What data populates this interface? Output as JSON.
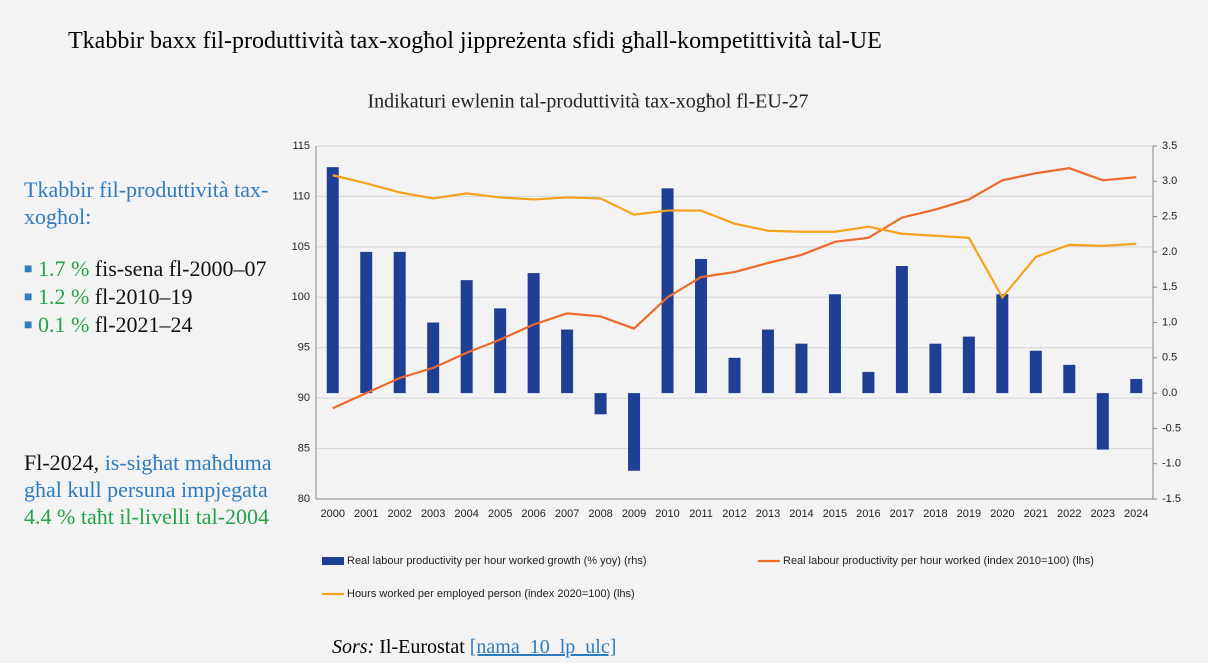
{
  "slide": {
    "title": "Tkabbir baxx fil-produttività tax-xogħol jippreżenta sfidi għall-kompetittività tal-UE",
    "side": {
      "heading": "Tkabbir fil-produttività tax-xogħol:",
      "bullets": [
        {
          "value": "1.7 %",
          "text": "fis-sena fl-2000–07"
        },
        {
          "value": "1.2 %",
          "text": "fl-2010–19"
        },
        {
          "value": "0.1 %",
          "text": "fl-2021–24"
        }
      ],
      "note": {
        "lead": "Fl-2024,",
        "blue": "is-sigħat maħduma għal kull persuna impjegata",
        "green": "4.4 % taħt il-livelli tal-2004"
      }
    },
    "source": {
      "label": "Sors:",
      "text": "Il-Eurostat",
      "link": "[nama_10_lp_ulc]"
    }
  },
  "chart_data": {
    "type": "bar",
    "title": "Indikaturi ewlenin tal-produttività tax-xogħol fl-EU-27",
    "categories": [
      "2000",
      "2001",
      "2002",
      "2003",
      "2004",
      "2005",
      "2006",
      "2007",
      "2008",
      "2009",
      "2010",
      "2011",
      "2012",
      "2013",
      "2014",
      "2015",
      "2016",
      "2017",
      "2018",
      "2019",
      "2020",
      "2021",
      "2022",
      "2023",
      "2024"
    ],
    "series": [
      {
        "name": "Real labour productivity per hour worked growth (% yoy) (rhs)",
        "type": "bar",
        "axis": "y2",
        "color": "#1f3f94",
        "values": [
          3.2,
          2.0,
          2.0,
          1.0,
          1.6,
          1.2,
          1.7,
          0.9,
          -0.3,
          -1.1,
          2.9,
          1.9,
          0.5,
          0.9,
          0.7,
          1.4,
          0.3,
          1.8,
          0.7,
          0.8,
          1.4,
          0.6,
          0.4,
          -0.8,
          0.2
        ]
      },
      {
        "name": "Real labour productivity per hour worked (index 2010=100) (lhs)",
        "type": "line",
        "color": "#ed6a2b",
        "values": [
          89,
          90.5,
          92,
          93,
          94.5,
          95.8,
          97.3,
          98.4,
          98.1,
          96.9,
          100,
          102,
          102.5,
          103.4,
          104.2,
          105.5,
          105.9,
          107.9,
          108.7,
          109.7,
          111.6,
          112.3,
          112.8,
          111.6,
          111.9
        ]
      },
      {
        "name": "Hours worked per employed person (index 2020=100) (lhs)",
        "type": "line",
        "color": "#f7a21b",
        "values": [
          112.1,
          111.3,
          110.4,
          109.8,
          110.3,
          109.9,
          109.7,
          109.9,
          109.8,
          108.2,
          108.6,
          108.6,
          107.3,
          106.6,
          106.5,
          106.5,
          107,
          106.3,
          106.1,
          105.9,
          100,
          104,
          105.2,
          105.1,
          105.3
        ]
      }
    ],
    "ylim": [
      80,
      115
    ],
    "yticks": [
      80,
      85,
      90,
      95,
      100,
      105,
      110,
      115
    ],
    "y2lim": [
      -1.5,
      3.5
    ],
    "y2ticks": [
      -1.5,
      {
        "value": -1,
        "label": "-1.0"
      },
      -0.5,
      {
        "value": 0,
        "label": "0.0"
      },
      0.5,
      {
        "value": 1,
        "label": "1.0"
      },
      1.5,
      {
        "value": 2,
        "label": "2.0"
      },
      2.5,
      {
        "value": 3,
        "label": "3.0"
      },
      3.5
    ],
    "grid": true,
    "legend": "bottom"
  }
}
